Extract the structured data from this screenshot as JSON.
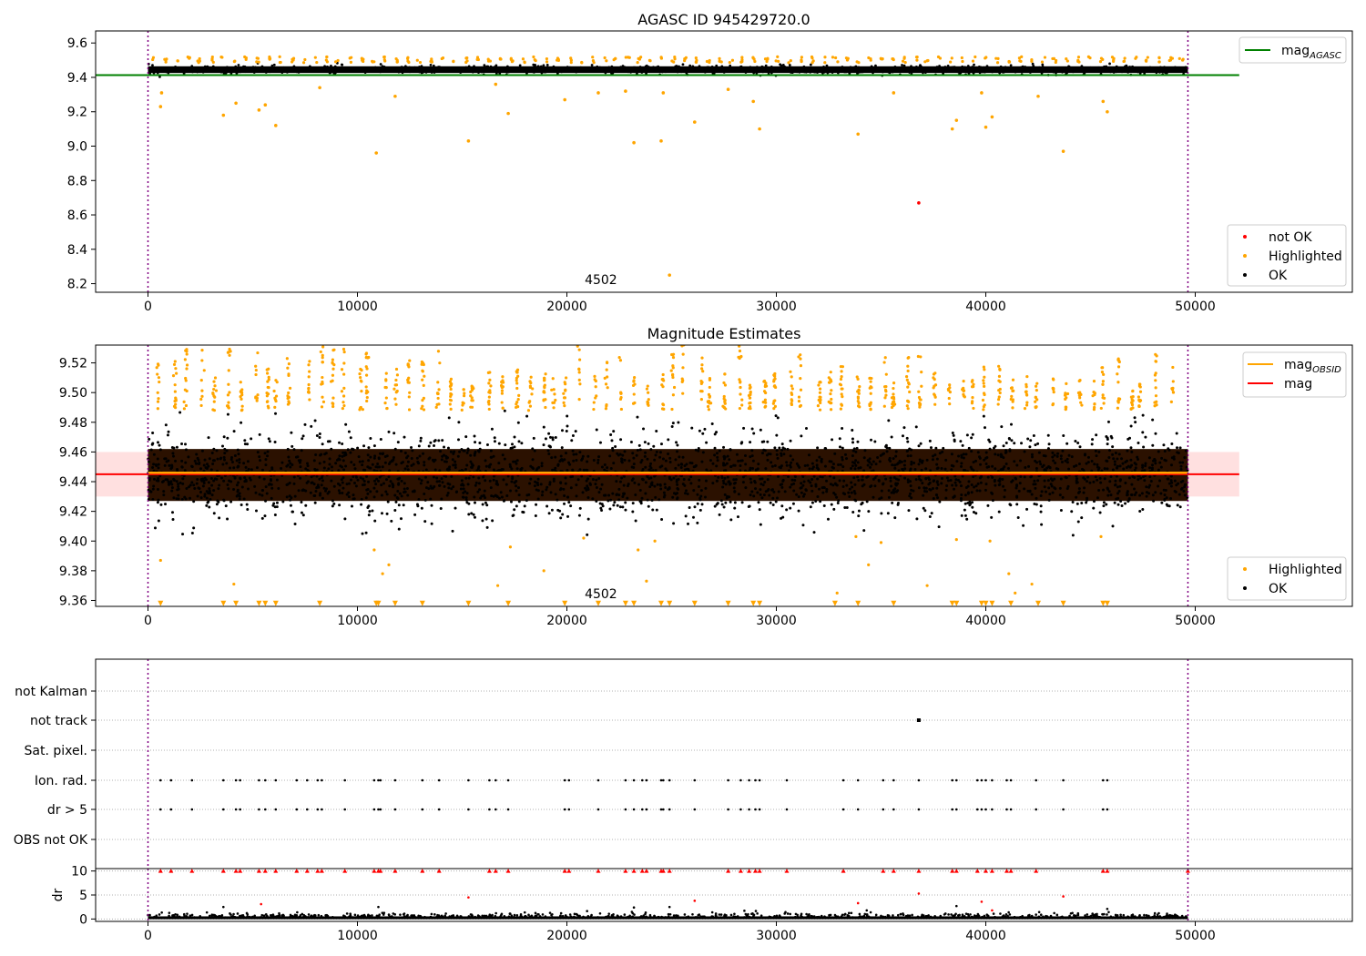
{
  "chart_data": [
    {
      "id": "agasc",
      "type": "scatter",
      "title": "AGASC ID 945429720.0",
      "xlabel": "",
      "ylabel": "",
      "xlim": [
        -2500,
        57500
      ],
      "ylim": [
        8.15,
        9.67
      ],
      "xticks": [
        "0",
        "10000",
        "20000",
        "30000",
        "40000",
        "50000"
      ],
      "xtick_values": [
        0,
        10000,
        20000,
        30000,
        40000,
        50000
      ],
      "yticks": [
        "8.2",
        "8.4",
        "8.6",
        "8.8",
        "9.0",
        "9.2",
        "9.4",
        "9.6"
      ],
      "ytick_values": [
        8.2,
        8.4,
        8.6,
        8.8,
        9.0,
        9.2,
        9.4,
        9.6
      ],
      "vlines": [
        0,
        49650
      ],
      "hline": {
        "name": "mag_AGASC",
        "y": 9.413,
        "x_range": [
          -2500,
          52100
        ],
        "color": "#008000"
      },
      "annotation": {
        "text": "4502",
        "x": 24800,
        "y": 8.2
      },
      "series": [
        {
          "name": "not OK",
          "color": "#ff0000",
          "points": [
            [
              36800,
              8.67
            ]
          ]
        },
        {
          "name": "Highlighted",
          "color": "#ffa500",
          "points": [
            [
              600,
              9.23
            ],
            [
              650,
              9.31
            ],
            [
              3600,
              9.18
            ],
            [
              4200,
              9.25
            ],
            [
              5300,
              9.21
            ],
            [
              5600,
              9.24
            ],
            [
              6100,
              9.12
            ],
            [
              8200,
              9.34
            ],
            [
              10900,
              8.96
            ],
            [
              11800,
              9.29
            ],
            [
              15300,
              9.03
            ],
            [
              16600,
              9.36
            ],
            [
              17200,
              9.19
            ],
            [
              19900,
              9.27
            ],
            [
              21500,
              9.31
            ],
            [
              22800,
              9.32
            ],
            [
              23200,
              9.02
            ],
            [
              24500,
              9.03
            ],
            [
              24600,
              9.31
            ],
            [
              26100,
              9.14
            ],
            [
              27700,
              9.33
            ],
            [
              28900,
              9.26
            ],
            [
              29200,
              9.1
            ],
            [
              33900,
              9.07
            ],
            [
              35600,
              9.31
            ],
            [
              38400,
              9.1
            ],
            [
              38600,
              9.15
            ],
            [
              39800,
              9.31
            ],
            [
              40000,
              9.11
            ],
            [
              40300,
              9.17
            ],
            [
              42500,
              9.29
            ],
            [
              43700,
              8.97
            ],
            [
              45600,
              9.26
            ],
            [
              45800,
              9.2
            ],
            [
              24900,
              8.25
            ]
          ]
        },
        {
          "name": "OK",
          "color": "#000000",
          "band": [
            9.415,
            9.475
          ]
        }
      ],
      "legends": [
        {
          "position": "upper right",
          "entries": [
            {
              "label": "mag",
              "sub": "AGASC",
              "kind": "line",
              "color": "#008000"
            }
          ]
        },
        {
          "position": "lower right",
          "entries": [
            {
              "label": "not OK",
              "kind": "point",
              "color": "#ff0000"
            },
            {
              "label": "Highlighted",
              "kind": "point",
              "color": "#ffa500"
            },
            {
              "label": "OK",
              "kind": "point",
              "color": "#000000"
            }
          ]
        }
      ]
    },
    {
      "id": "estimates",
      "type": "scatter",
      "title": "Magnitude Estimates",
      "xlabel": "",
      "ylabel": "",
      "xlim": [
        -2500,
        57500
      ],
      "ylim": [
        9.356,
        9.532
      ],
      "xticks": [
        "0",
        "10000",
        "20000",
        "30000",
        "40000",
        "50000"
      ],
      "xtick_values": [
        0,
        10000,
        20000,
        30000,
        40000,
        50000
      ],
      "yticks": [
        "9.36",
        "9.38",
        "9.40",
        "9.42",
        "9.44",
        "9.46",
        "9.48",
        "9.50",
        "9.52"
      ],
      "ytick_values": [
        9.36,
        9.38,
        9.4,
        9.42,
        9.44,
        9.46,
        9.48,
        9.5,
        9.52
      ],
      "vlines": [
        0,
        49650
      ],
      "mag_line": {
        "name": "mag",
        "y": 9.445,
        "band": [
          9.43,
          9.46
        ],
        "x_range": [
          -2500,
          52100
        ],
        "color": "#ff0000"
      },
      "mag_obsid_line": {
        "name": "mag_OBSID",
        "y": 9.446,
        "x_range": [
          0,
          49650
        ],
        "color": "#ffa500"
      },
      "annotation": {
        "text": "4502",
        "x": 24800,
        "y": 9.36
      },
      "legends": [
        {
          "position": "upper right",
          "entries": [
            {
              "label": "mag",
              "sub": "OBSID",
              "kind": "line",
              "color": "#ffa500"
            },
            {
              "label": "mag",
              "kind": "line",
              "color": "#ff0000"
            }
          ]
        },
        {
          "position": "lower right",
          "entries": [
            {
              "label": "Highlighted",
              "kind": "point",
              "color": "#ffa500"
            },
            {
              "label": "OK",
              "kind": "point",
              "color": "#000000"
            }
          ]
        }
      ]
    },
    {
      "id": "flags",
      "type": "scatter",
      "xlim": [
        -2500,
        57500
      ],
      "categories": [
        "not Kalman",
        "not track",
        "Sat. pixel.",
        "Ion. rad.",
        "dr > 5",
        "OBS not OK"
      ],
      "vlines": [
        0,
        49650
      ],
      "flag_points": {
        "not track": [
          36800
        ],
        "Ion. rad.": [
          600,
          1100,
          2100,
          3600,
          4200,
          4400,
          5300,
          5600,
          6100,
          7100,
          7600,
          8100,
          8300,
          9400,
          10800,
          11000,
          11100,
          11800,
          13100,
          13900,
          15300,
          16300,
          16600,
          17200,
          19900,
          20100,
          21500,
          22800,
          23200,
          23600,
          23800,
          24500,
          24600,
          24900,
          26100,
          27700,
          28300,
          28700,
          29000,
          29200,
          30500,
          33200,
          33900,
          35100,
          35600,
          36800,
          38400,
          38600,
          39600,
          39800,
          40000,
          40300,
          41000,
          41200,
          42400,
          43700,
          45600,
          45800
        ],
        "dr > 5": [
          600,
          1100,
          2100,
          3600,
          4200,
          4400,
          5300,
          5600,
          6100,
          7100,
          7600,
          8100,
          8300,
          9400,
          10800,
          11000,
          11100,
          11800,
          13100,
          13900,
          15300,
          16300,
          16600,
          17200,
          19900,
          20100,
          21500,
          22800,
          23200,
          23600,
          23800,
          24500,
          24600,
          24900,
          26100,
          27700,
          28300,
          28700,
          29000,
          29200,
          30500,
          33200,
          33900,
          35100,
          35600,
          36800,
          38400,
          38600,
          39600,
          39800,
          40000,
          40300,
          41000,
          41200,
          42400,
          43700,
          45600,
          45800
        ]
      }
    },
    {
      "id": "dr",
      "type": "scatter",
      "xlim": [
        -2500,
        57500
      ],
      "ylim": [
        -0.5,
        10.5
      ],
      "ylabel": "dr",
      "xticks": [
        "0",
        "10000",
        "20000",
        "30000",
        "40000",
        "50000"
      ],
      "xtick_values": [
        0,
        10000,
        20000,
        30000,
        40000,
        50000
      ],
      "yticks": [
        "0",
        "5",
        "10"
      ],
      "ytick_values": [
        0,
        5,
        10
      ],
      "vlines": [
        0,
        49650
      ],
      "capped_points": [
        600,
        1100,
        2100,
        3600,
        4200,
        4400,
        5300,
        5600,
        6100,
        7100,
        7600,
        8100,
        8300,
        9400,
        10800,
        11000,
        11100,
        11800,
        13100,
        13900,
        16300,
        16600,
        17200,
        19900,
        20100,
        21500,
        22800,
        23200,
        23600,
        23800,
        24500,
        24600,
        24900,
        27700,
        28300,
        28700,
        29000,
        29200,
        30500,
        33200,
        35100,
        35600,
        36800,
        38400,
        38600,
        39600,
        40000,
        40300,
        41000,
        41200,
        42400,
        45600,
        45800,
        49650
      ],
      "red_points": [
        [
          5400,
          3.1
        ],
        [
          15300,
          4.5
        ],
        [
          26100,
          3.8
        ],
        [
          33900,
          3.3
        ],
        [
          36800,
          5.3
        ],
        [
          39800,
          3.6
        ],
        [
          43700,
          4.7
        ],
        [
          40300,
          1.8
        ]
      ],
      "black_points": [
        [
          3600,
          2.5
        ],
        [
          11000,
          2.5
        ],
        [
          23200,
          2.4
        ],
        [
          24900,
          2.5
        ],
        [
          38600,
          2.7
        ],
        [
          45800,
          2.1
        ]
      ]
    }
  ]
}
